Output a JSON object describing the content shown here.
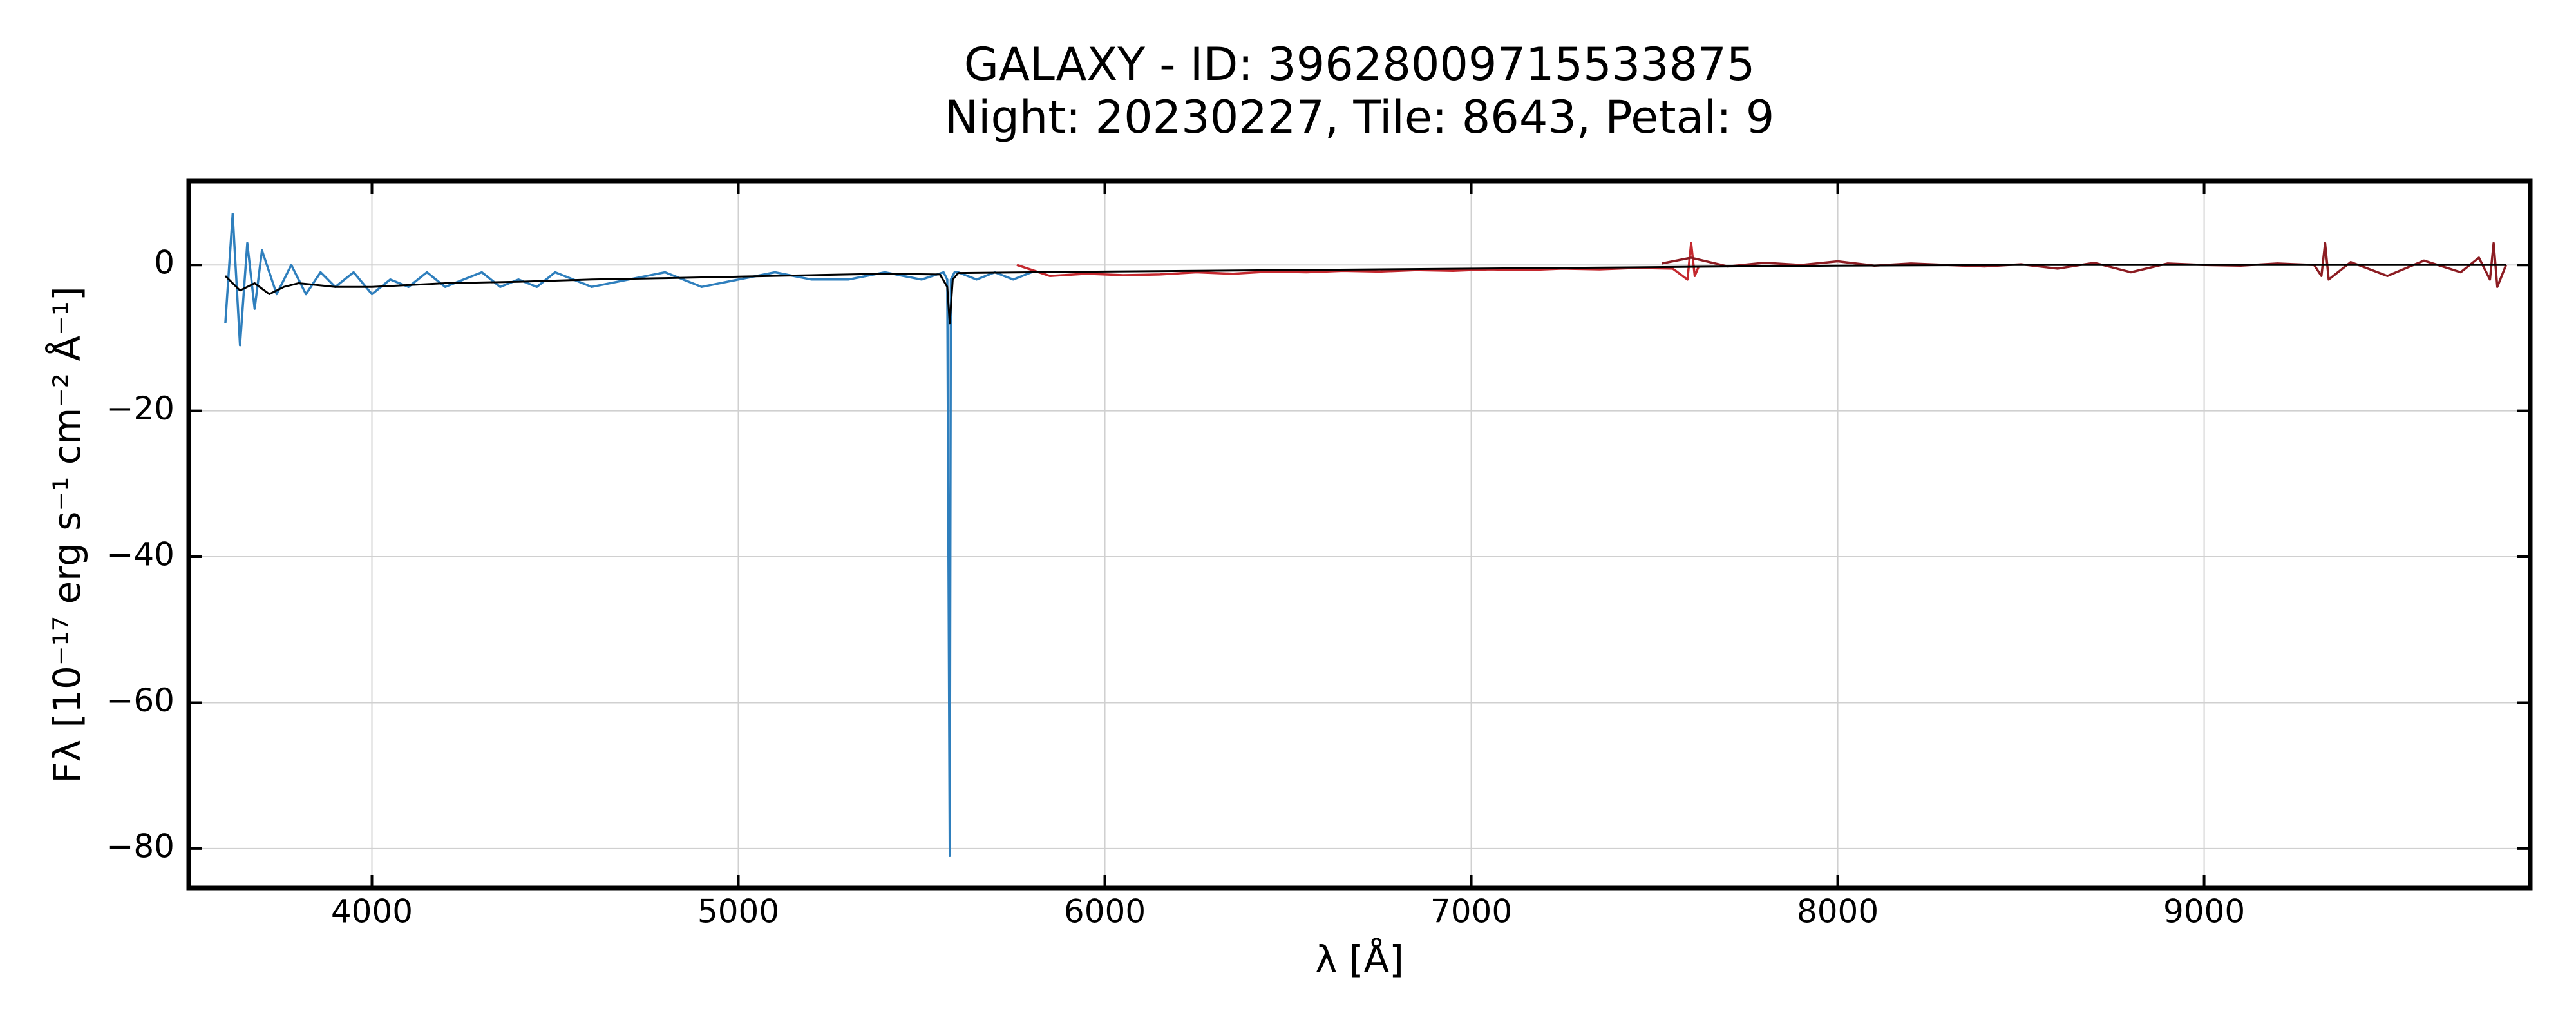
{
  "chart_data": {
    "type": "line",
    "title": "GALAXY - ID: 39628009715533875",
    "subtitle": "Night: 20230227, Tile: 8643, Petal: 9",
    "xlabel": "λ [Å]",
    "ylabel": "Fλ [10⁻¹⁷ erg s⁻¹ cm⁻² Å⁻¹]",
    "xlim": [
      3500,
      9890
    ],
    "ylim": [
      -85.4,
      11.5
    ],
    "xticks": [
      4000,
      5000,
      6000,
      7000,
      8000,
      9000
    ],
    "yticks": [
      {
        "value": -80,
        "label": "−80"
      },
      {
        "value": -60,
        "label": "−60"
      },
      {
        "value": -40,
        "label": "−40"
      },
      {
        "value": -20,
        "label": "−20"
      },
      0
    ],
    "grid": true,
    "series": [
      {
        "color": "#2f7fbd",
        "x": [
          3600,
          3620,
          3640,
          3660,
          3680,
          3700,
          3740,
          3780,
          3820,
          3860,
          3900,
          3950,
          4000,
          4050,
          4100,
          4150,
          4200,
          4250,
          4300,
          4350,
          4400,
          4450,
          4500,
          4600,
          4700,
          4800,
          4900,
          5000,
          5100,
          5200,
          5300,
          5400,
          5500,
          5560,
          5570,
          5577,
          5580,
          5590,
          5600,
          5650,
          5700,
          5750,
          5800
        ],
        "values": [
          -8,
          7,
          -11,
          3,
          -6,
          2,
          -4,
          0,
          -4,
          -1,
          -3,
          -1,
          -4,
          -2,
          -3,
          -1,
          -3,
          -2,
          -1,
          -3,
          -2,
          -3,
          -1,
          -3,
          -2,
          -1,
          -3,
          -2,
          -1,
          -2,
          -2,
          -1,
          -2,
          -1,
          -2,
          -81,
          -2,
          -1,
          -1,
          -2,
          -1,
          -2,
          -1
        ]
      },
      {
        "color": "#c4282e",
        "x": [
          5760,
          5850,
          5950,
          6050,
          6150,
          6250,
          6350,
          6450,
          6550,
          6650,
          6750,
          6850,
          6950,
          7050,
          7150,
          7250,
          7350,
          7450,
          7550,
          7590,
          7600,
          7610,
          7620
        ],
        "values": [
          0,
          -1.5,
          -1.2,
          -1.4,
          -1.3,
          -1,
          -1.2,
          -0.9,
          -1,
          -0.8,
          -0.9,
          -0.7,
          -0.8,
          -0.6,
          -0.7,
          -0.5,
          -0.6,
          -0.4,
          -0.5,
          -2,
          3,
          -1.5,
          -0.3
        ]
      },
      {
        "color": "#8c1c22",
        "x": [
          7520,
          7600,
          7700,
          7800,
          7900,
          8000,
          8100,
          8200,
          8300,
          8400,
          8500,
          8600,
          8700,
          8800,
          8900,
          9000,
          9100,
          9200,
          9300,
          9320,
          9330,
          9340,
          9400,
          9500,
          9600,
          9700,
          9750,
          9780,
          9790,
          9800,
          9824
        ],
        "values": [
          0.2,
          1,
          -0.2,
          0.3,
          0,
          0.5,
          -0.1,
          0.2,
          0,
          -0.2,
          0.1,
          -0.5,
          0.3,
          -1,
          0.2,
          0,
          -0.1,
          0.2,
          0,
          -1.5,
          3,
          -2,
          0.4,
          -1.5,
          0.6,
          -1,
          1,
          -2,
          3,
          -3,
          0
        ]
      },
      {
        "color": "#000000",
        "x": [
          3600,
          3640,
          3680,
          3720,
          3760,
          3800,
          3900,
          4000,
          4200,
          4400,
          4600,
          4800,
          5000,
          5200,
          5400,
          5550,
          5570,
          5577,
          5585,
          5600,
          5800,
          6000,
          6500,
          7000,
          7500,
          8000,
          8500,
          9000,
          9500,
          9824
        ],
        "values": [
          -1.5,
          -3.5,
          -2.5,
          -4,
          -3,
          -2.5,
          -3,
          -3,
          -2.5,
          -2.3,
          -2,
          -1.8,
          -1.6,
          -1.4,
          -1.2,
          -1.3,
          -3,
          -8,
          -2,
          -1.1,
          -1,
          -0.9,
          -0.7,
          -0.5,
          -0.3,
          -0.1,
          0,
          0,
          0,
          0
        ]
      }
    ]
  }
}
